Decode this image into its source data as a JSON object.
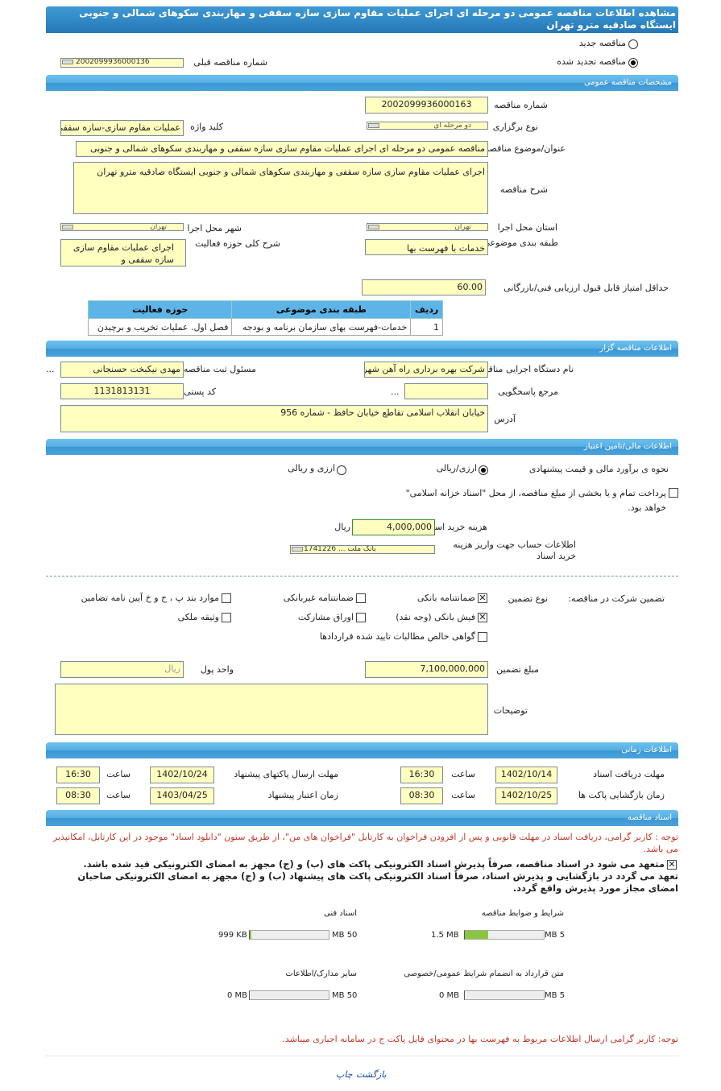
{
  "title": "مشاهده اطلاعات مناقصه عمومی دو مرحله ای اجرای عملیات مقاوم سازی سازه سقفی و مهاربندی سکوهای شمالی و جنوبی ایستگاه صادقیه مترو تهران",
  "type": {
    "new_label": "مناقصه جدید",
    "renewed_label": "مناقصه تجدید شده",
    "selected": "renewed",
    "prev_label": "شماره مناقصه قبلی",
    "prev_value": "2002099936000136"
  },
  "general": {
    "header": "مشخصات مناقصه عمومی",
    "number_label": "شماره مناقصه",
    "number": "2002099936000163",
    "holding_label": "نوع برگزاری",
    "holding": "دو مرحله ای",
    "keyword_label": "کلید واژه",
    "keyword": "عملیات مقاوم سازی-سازه سقفی",
    "subject_label": "عنوان/موضوع مناقصه",
    "subject": "مناقصه عمومی دو مرحله ای اجرای عملیات مقاوم سازی سازه سقفی و مهاربندی سکوهای شمالی و جنوبی",
    "desc_label": "شرح مناقصه",
    "desc": "اجرای عملیات مقاوم سازی سازه سقفی و مهاربندی سکوهای شمالی و جنوبی ایستگاه صادقیه مترو تهران",
    "province_label": "استان محل اجرا",
    "province": "تهران",
    "city_label": "شهر محل اجرا",
    "city": "تهران",
    "category_label": "طبقه بندی موضوعی",
    "category": "خدمات با فهرست بها",
    "activity_label": "شرح کلی حوزه فعالیت",
    "activity": "اجرای عملیات مقاوم سازی سازه سقفی و",
    "min_score_label": "حداقل امتیاز قابل قبول ارزیابی فنی/بازرگانی",
    "min_score": "60.00",
    "table": {
      "headers": [
        "ردیف",
        "طبقه بندی موضوعی",
        "حوزه فعالیت"
      ],
      "rows": [
        [
          "1",
          "خدمات-فهرست بهای سازمان برنامه و بودجه",
          "فصل اول. عملیات تخریب و برچیدن"
        ]
      ]
    }
  },
  "organizer": {
    "header": "اطلاعات مناقصه گزار",
    "org_label": "نام دستگاه اجرایی مناقصه گزار",
    "org": "شرکت بهره برداری راه آهن شهری تهران",
    "resp_label": "مسئول ثبت مناقصه",
    "resp": "مهدی نیکبخت حسنجانی",
    "more": "...",
    "ref_label": "مرجع پاسخگویی",
    "ref": "",
    "ref_more": "...",
    "postal_label": "کد پستی",
    "postal": "1131813131",
    "address_label": "آدرس",
    "address": "خیابان انقلاب اسلامی تقاطع خیابان حافظ - شماره 956"
  },
  "finance": {
    "header": "اطلاعات مالی/تامین اعتبار",
    "estimate_label": "نحوه ی برآورد مالی و قیمت پیشنهادی",
    "opt1": "ارزی/ریالی",
    "opt2": "ارزی و ریالی",
    "selected": "opt1",
    "treasury": "پرداخت تمام و یا بخشی از مبلغ مناقصه، از محل \"اسناد خزانه اسلامی\" خواهد بود.",
    "doc_cost_label": "هزینه خرید اسناد",
    "doc_cost": "4,000,000",
    "currency": "ریال",
    "account_label": "اطلاعات حساب جهت واریز هزینه خرید اسناد",
    "account": "بانک ملت ... 1741226"
  },
  "guarantee": {
    "label": "تضمین شرکت در مناقصه:",
    "type_label": "نوع تضمین",
    "options": [
      {
        "label": "ضمانتنامه بانکی",
        "checked": true
      },
      {
        "label": "ضمانتنامه غیربانکی",
        "checked": false
      },
      {
        "label": "موارد بند پ ، ح و خ آیین نامه تضامین",
        "checked": false
      },
      {
        "label": "فیش بانکی (وجه نقد)",
        "checked": true
      },
      {
        "label": "اوراق مشارکت",
        "checked": false
      },
      {
        "label": "وثیقه ملکی",
        "checked": false
      },
      {
        "label": "گواهی خالص مطالبات تایید شده قراردادها",
        "checked": false
      }
    ],
    "amount_label": "مبلغ تضمین",
    "amount": "7,100,000,000",
    "unit_label": "واحد پول",
    "unit": "ریال",
    "notes_label": "توضیحات",
    "notes": ""
  },
  "time": {
    "header": "اطلاعات زمانی",
    "hour_label": "ساعت",
    "receive_label": "مهلت دریافت اسناد",
    "receive_date": "1402/10/14",
    "receive_time": "16:30",
    "submit_label": "مهلت ارسال پاکتهای پیشنهاد",
    "submit_date": "1402/10/24",
    "submit_time": "16:30",
    "open_label": "زمان بازگشایی پاکت ها",
    "open_date": "1402/10/25",
    "open_time": "08:30",
    "valid_label": "زمان اعتبار پیشنهاد",
    "valid_date": "1403/04/25",
    "valid_time": "08:30"
  },
  "docs": {
    "header": "اسناد مناقصه",
    "note": "توجه : کاربر گرامی، دریافت اسناد در مهلت قانونی و پس از افزودن فراخوان به کارتابل \"فراخوان های من\"، از طریق ستون \"دانلود اسناد\" موجود در این کارتابل، امکانپذیر می باشد.",
    "commit1": "متعهد می شود در اسناد مناقصه، صرفاً پذیرش اسناد الکترونیکی پاکت های (ب) و (ج) مجهز به امضای الکترونیکی قید شده باشد.",
    "commit2": "تعهد می گردد در بازگشایی و پذیرش اسناد، صرفاً اسناد الکترونیکی پاکت های پیشنهاد (ب) و (ج) مجهز به امضای الکترونیکی صاحبان امضای مجاز مورد پذیرش واقع گردد.",
    "files": [
      {
        "label": "شرایط و ضوابط مناقصه",
        "size": "1.5 MB",
        "max": "5 MB",
        "fraction": 0.3
      },
      {
        "label": "اسناد فنی",
        "size": "999 KB",
        "max": "50 MB",
        "fraction": 0.02
      },
      {
        "label": "متن قرارداد به انضمام شرایط عمومی/خصوصی",
        "size": "0 MB",
        "max": "5 MB",
        "fraction": 0
      },
      {
        "label": "سایر مدارک/اطلاعات",
        "size": "0 MB",
        "max": "50 MB",
        "fraction": 0
      }
    ],
    "note2": "توجه: کاربر گرامی ارسال اطلاعات مربوط به فهرست بها در محتوای فایل پاکت ج در سامانه اجباری میباشد."
  },
  "footer": {
    "print": "چاپ",
    "back": "بازگشت"
  },
  "colors": {
    "header": "#4aa3dc",
    "input": "#ffffc0",
    "note": "#c0392b",
    "bar": "#8cc63f"
  }
}
